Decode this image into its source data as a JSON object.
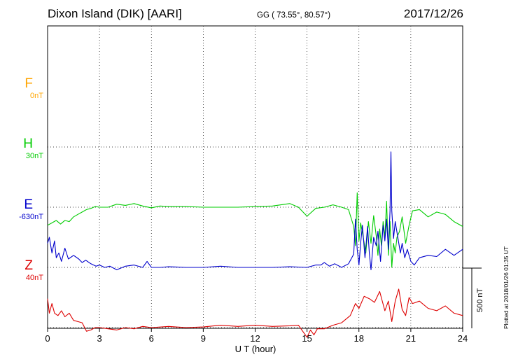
{
  "header": {
    "station": "Dixon Island (DIK)  [AARI]",
    "coords": "GG ( 73.55°,  80.57°)",
    "date": "2017/12/26"
  },
  "components": [
    {
      "id": "F",
      "letter": "F",
      "baseline": "0nT",
      "color": "#ffa500"
    },
    {
      "id": "H",
      "letter": "H",
      "baseline": "30nT",
      "color": "#00cc00"
    },
    {
      "id": "E",
      "letter": "E",
      "baseline": "-630nT",
      "color": "#0000cc"
    },
    {
      "id": "Z",
      "letter": "Z",
      "baseline": "40nT",
      "color": "#dd0000"
    }
  ],
  "scale_bar_label": "500 nT",
  "plotted_note": "Plotted at 2018/01/26 01:35 UT",
  "chart_data": {
    "type": "line",
    "xlabel": "U T (hour)",
    "xlim": [
      0,
      24
    ],
    "x_ticks": [
      "0",
      "3",
      "6",
      "9",
      "12",
      "15",
      "18",
      "21",
      "24"
    ],
    "ylabel": "",
    "ylim": [
      -1000,
      1000
    ],
    "unit": "nT",
    "grid": "dotted",
    "baselines": {
      "F": 500,
      "H": 0,
      "E": -500,
      "Z": -1000
    },
    "scale_bar": {
      "value": 500,
      "unit": "nT"
    },
    "series": [
      {
        "name": "H",
        "color": "#00cc00",
        "x": [
          0,
          0.25,
          0.5,
          0.75,
          1,
          1.25,
          1.5,
          1.75,
          2,
          2.25,
          2.5,
          2.75,
          3,
          3.5,
          4,
          4.5,
          5,
          5.5,
          6,
          6.5,
          7,
          8,
          9,
          10,
          11,
          12,
          13,
          14,
          14.5,
          15,
          15.5,
          16,
          16.5,
          17,
          17.4,
          17.7,
          17.8,
          17.9,
          18,
          18.1,
          18.25,
          18.4,
          18.55,
          18.7,
          18.85,
          19,
          19.1,
          19.2,
          19.3,
          19.4,
          19.5,
          19.6,
          19.7,
          19.8,
          19.9,
          20,
          20.1,
          20.2,
          20.35,
          20.5,
          20.7,
          20.9,
          21.1,
          21.5,
          22,
          22.5,
          23,
          23.5,
          24
        ],
        "values": [
          -150,
          -130,
          -110,
          -140,
          -110,
          -120,
          -80,
          -60,
          -40,
          -20,
          -10,
          5,
          0,
          0,
          25,
          15,
          30,
          10,
          -5,
          10,
          5,
          5,
          0,
          0,
          0,
          5,
          10,
          30,
          0,
          -75,
          -10,
          0,
          20,
          0,
          -20,
          -160,
          -320,
          120,
          -280,
          -130,
          -250,
          -380,
          -120,
          -300,
          -70,
          -240,
          -400,
          -180,
          -320,
          -120,
          -250,
          50,
          -400,
          -120,
          -500,
          -300,
          -380,
          -250,
          -200,
          -80,
          -300,
          -150,
          -30,
          -20,
          -80,
          -40,
          -60,
          -120,
          -160
        ]
      },
      {
        "name": "E",
        "color": "#0000cc",
        "x": [
          0,
          0.1,
          0.25,
          0.4,
          0.5,
          0.65,
          0.8,
          1,
          1.2,
          1.5,
          1.8,
          2,
          2.2,
          2.5,
          2.8,
          3,
          3.3,
          3.6,
          4,
          4.5,
          5,
          5.5,
          5.75,
          6,
          6.5,
          7,
          8,
          9,
          10,
          11,
          12,
          13,
          14,
          15,
          15.5,
          15.8,
          16,
          16.3,
          16.6,
          17,
          17.4,
          17.7,
          17.8,
          17.9,
          18,
          18.1,
          18.2,
          18.35,
          18.5,
          18.6,
          18.7,
          18.85,
          19,
          19.1,
          19.25,
          19.4,
          19.5,
          19.6,
          19.7,
          19.8,
          19.85,
          19.9,
          20,
          20.1,
          20.25,
          20.4,
          20.5,
          20.65,
          20.8,
          21,
          21.2,
          21.5,
          22,
          22.5,
          23,
          23.5,
          24
        ],
        "values": [
          -300,
          -250,
          -380,
          -280,
          -420,
          -380,
          -450,
          -340,
          -430,
          -400,
          -430,
          -460,
          -440,
          -470,
          -490,
          -480,
          -500,
          -490,
          -520,
          -490,
          -480,
          -500,
          -450,
          -500,
          -500,
          -495,
          -500,
          -500,
          -490,
          -500,
          -500,
          -500,
          -495,
          -500,
          -480,
          -480,
          -460,
          -490,
          -470,
          -500,
          -470,
          -390,
          -100,
          -350,
          -480,
          -300,
          -150,
          -420,
          -160,
          -380,
          -520,
          -250,
          -320,
          -200,
          -450,
          -150,
          -280,
          -100,
          -350,
          -30,
          460,
          -30,
          -260,
          -120,
          -250,
          -380,
          -300,
          -420,
          -350,
          -450,
          -480,
          -420,
          -400,
          -410,
          -350,
          -400,
          -350
        ]
      },
      {
        "name": "Z",
        "color": "#dd0000",
        "x": [
          0,
          0.1,
          0.25,
          0.4,
          0.6,
          0.8,
          1,
          1.25,
          1.5,
          1.75,
          2,
          2.25,
          2.5,
          2.75,
          3,
          3.5,
          4,
          4.5,
          5,
          5.5,
          6,
          7,
          8,
          9,
          10,
          11,
          12,
          13,
          14,
          14.5,
          15,
          15.2,
          15.4,
          15.6,
          16,
          16.5,
          17,
          17.5,
          17.8,
          18,
          18.3,
          18.6,
          18.9,
          19.2,
          19.5,
          19.7,
          19.9,
          20.1,
          20.3,
          20.5,
          20.7,
          20.9,
          21.1,
          21.5,
          22,
          22.5,
          23,
          23.5,
          24
        ],
        "values": [
          -760,
          -880,
          -800,
          -880,
          -900,
          -860,
          -910,
          -880,
          -940,
          -950,
          -960,
          -1030,
          -1020,
          -1000,
          -1000,
          -1010,
          -1020,
          -1000,
          -1010,
          -990,
          -1000,
          -990,
          -1000,
          -995,
          -980,
          -990,
          -980,
          -990,
          -985,
          -980,
          -1080,
          -1020,
          -1060,
          -1010,
          -1010,
          -980,
          -960,
          -900,
          -800,
          -840,
          -740,
          -760,
          -790,
          -700,
          -860,
          -780,
          -950,
          -780,
          -680,
          -850,
          -900,
          -750,
          -800,
          -780,
          -840,
          -860,
          -820,
          -880,
          -900
        ]
      }
    ]
  }
}
